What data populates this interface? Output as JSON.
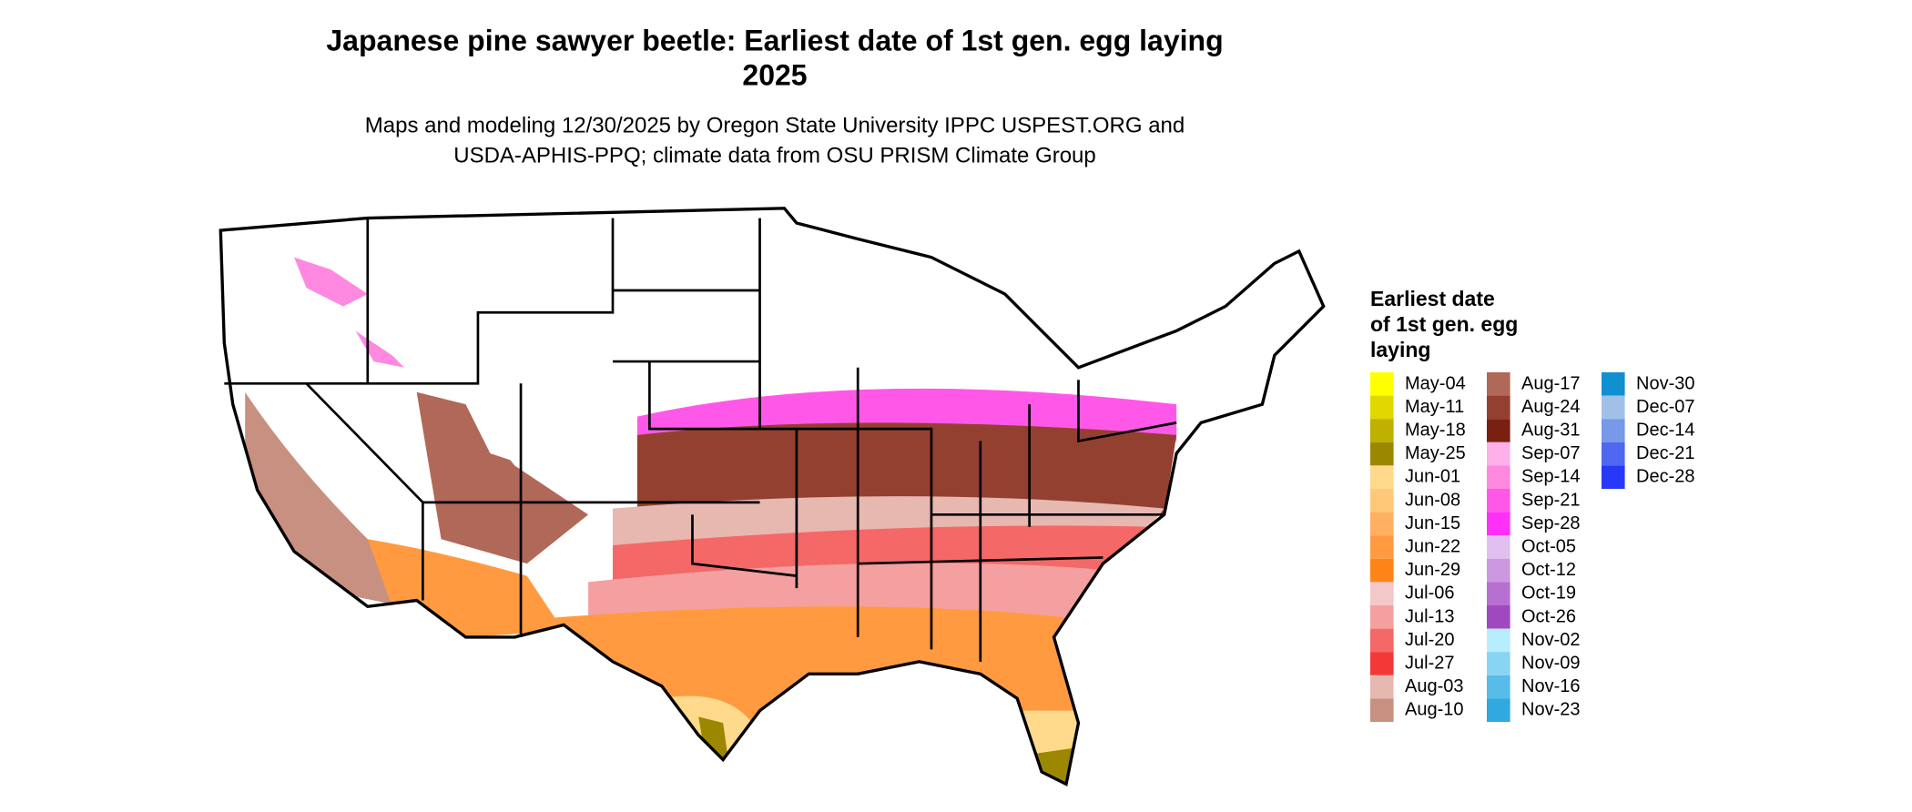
{
  "header": {
    "title_lines": [
      "Japanese pine sawyer beetle: Earliest date of 1st gen. egg laying",
      "2025"
    ],
    "subtitle_lines": [
      "Maps and modeling 12/30/2025 by Oregon State University IPPC USPEST.ORG and",
      "USDA-APHIS-PPQ; climate data from OSU PRISM Climate Group"
    ]
  },
  "legend": {
    "title_lines": [
      "Earliest date",
      "of 1st gen. egg",
      "laying"
    ],
    "items": [
      {
        "label": "May-04",
        "color": "#ffff00"
      },
      {
        "label": "May-11",
        "color": "#e0d800"
      },
      {
        "label": "May-18",
        "color": "#c0b000"
      },
      {
        "label": "May-25",
        "color": "#9c8800"
      },
      {
        "label": "Jun-01",
        "color": "#ffd98c"
      },
      {
        "label": "Jun-08",
        "color": "#ffc878"
      },
      {
        "label": "Jun-15",
        "color": "#ffb060"
      },
      {
        "label": "Jun-22",
        "color": "#ff9a40"
      },
      {
        "label": "Jun-29",
        "color": "#ff8418"
      },
      {
        "label": "Jul-06",
        "color": "#f4c8c8"
      },
      {
        "label": "Jul-13",
        "color": "#f4a0a0"
      },
      {
        "label": "Jul-20",
        "color": "#f46868"
      },
      {
        "label": "Jul-27",
        "color": "#f43838"
      },
      {
        "label": "Aug-03",
        "color": "#e6b8b0"
      },
      {
        "label": "Aug-10",
        "color": "#c89080"
      },
      {
        "label": "Aug-17",
        "color": "#b06858"
      },
      {
        "label": "Aug-24",
        "color": "#944030"
      },
      {
        "label": "Aug-31",
        "color": "#7a2010"
      },
      {
        "label": "Sep-07",
        "color": "#ffb0e8"
      },
      {
        "label": "Sep-14",
        "color": "#ff88e0"
      },
      {
        "label": "Sep-21",
        "color": "#ff58e8"
      },
      {
        "label": "Sep-28",
        "color": "#ff30f8"
      },
      {
        "label": "Oct-05",
        "color": "#e0c0f0"
      },
      {
        "label": "Oct-12",
        "color": "#cc98e0"
      },
      {
        "label": "Oct-19",
        "color": "#b870d0"
      },
      {
        "label": "Oct-26",
        "color": "#a048c0"
      },
      {
        "label": "Nov-02",
        "color": "#b8ecff"
      },
      {
        "label": "Nov-09",
        "color": "#88d4f4"
      },
      {
        "label": "Nov-16",
        "color": "#58bce8"
      },
      {
        "label": "Nov-23",
        "color": "#30a8e0"
      },
      {
        "label": "Nov-30",
        "color": "#1090d0"
      },
      {
        "label": "Dec-07",
        "color": "#a0c0e8"
      },
      {
        "label": "Dec-14",
        "color": "#7898e8"
      },
      {
        "label": "Dec-21",
        "color": "#5068f0"
      },
      {
        "label": "Dec-28",
        "color": "#2838f8"
      }
    ]
  }
}
